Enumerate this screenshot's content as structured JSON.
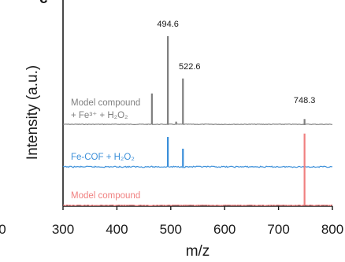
{
  "chart_data": {
    "type": "line",
    "xlabel": "m/z",
    "ylabel": "Intensity (a.u.)",
    "xlim": [
      300,
      800
    ],
    "xticks": [
      300,
      400,
      500,
      600,
      700,
      800
    ],
    "panel_letter_partial": "c",
    "left_axis_edge_label": "0",
    "series": [
      {
        "label_lines": [
          "Model compound",
          "+ Fe³⁺ + H₂O₂"
        ],
        "color": "#7f7f7f",
        "peaks": [
          {
            "x": 465,
            "y": 0.35
          },
          {
            "x": 494.6,
            "y": 1.0
          },
          {
            "x": 510,
            "y": 0.03
          },
          {
            "x": 522.6,
            "y": 0.52
          },
          {
            "x": 748.3,
            "y": 0.06
          }
        ]
      },
      {
        "label_lines": [
          "Fe-COF + H₂O₂"
        ],
        "color": "#3b8fd9",
        "peaks": [
          {
            "x": 494.6,
            "y": 0.33
          },
          {
            "x": 522.6,
            "y": 0.2
          }
        ]
      },
      {
        "label_lines": [
          "Model compound"
        ],
        "color": "#f08080",
        "peaks": [
          {
            "x": 748.3,
            "y": 0.83
          }
        ]
      }
    ],
    "annotations": [
      {
        "text": "494.6",
        "x": 494.6
      },
      {
        "text": "522.6",
        "x": 522.6
      },
      {
        "text": "748.3",
        "x": 748.3
      }
    ]
  }
}
